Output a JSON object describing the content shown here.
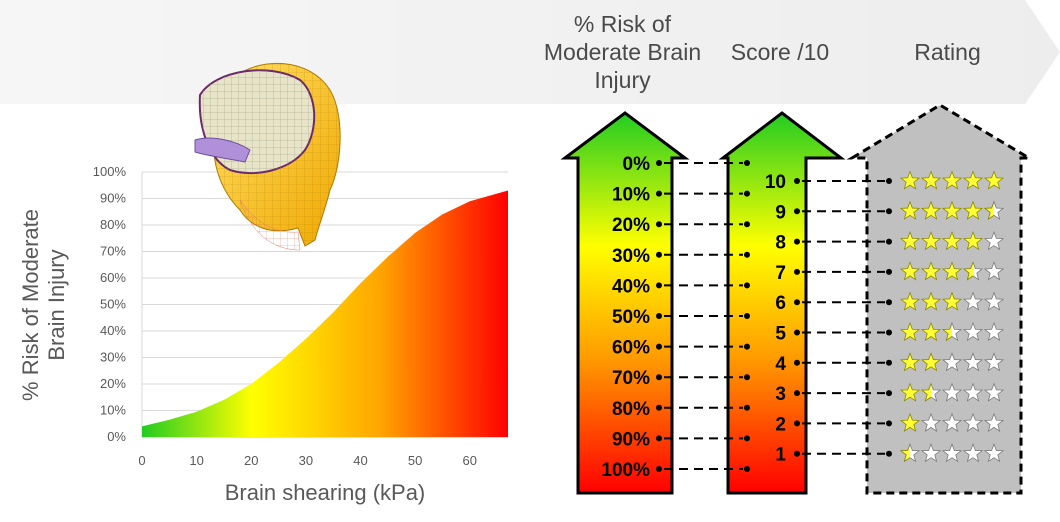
{
  "header": {
    "risk_col_title": "% Risk of\nModerate Brain\nInjury",
    "score_col_title": "Score /10",
    "rating_col_title": "Rating"
  },
  "chart_data": {
    "type": "area",
    "xlabel": "Brain shearing (kPa)",
    "ylabel": "% Risk of Moderate\nBrain Injury",
    "xlim": [
      0,
      67
    ],
    "ylim": [
      0,
      100
    ],
    "x_ticks": [
      "0",
      "10",
      "20",
      "30",
      "40",
      "50",
      "60"
    ],
    "y_ticks": [
      "0%",
      "10%",
      "20%",
      "30%",
      "40%",
      "50%",
      "60%",
      "70%",
      "80%",
      "90%",
      "100%"
    ],
    "grid": true,
    "series": [
      {
        "x": [
          0,
          5,
          10,
          15,
          20,
          25,
          30,
          35,
          40,
          45,
          50,
          55,
          60,
          67
        ],
        "y": [
          4,
          6.5,
          9.5,
          14,
          20,
          28,
          37,
          47,
          58,
          68,
          77,
          84,
          89,
          93
        ]
      }
    ]
  },
  "scale": {
    "risk_labels": [
      "0%",
      "10%",
      "20%",
      "30%",
      "40%",
      "50%",
      "60%",
      "70%",
      "80%",
      "90%",
      "100%"
    ],
    "scores": [
      "10",
      "9",
      "8",
      "7",
      "6",
      "5",
      "4",
      "3",
      "2",
      "1"
    ],
    "star_ratings": [
      5,
      4.5,
      4,
      3.5,
      3,
      2.5,
      2,
      1.5,
      1,
      0.5
    ],
    "star_max": 5
  },
  "colors": {
    "gradient_green": "#22cc22",
    "gradient_yellow": "#ffff00",
    "gradient_orange": "#ff9900",
    "gradient_red": "#ff0000",
    "star_fill": "#ffff33",
    "arrow_gray": "#c0c0c0"
  },
  "icons": {
    "head_model": "skull-brain-fe-model-icon"
  }
}
